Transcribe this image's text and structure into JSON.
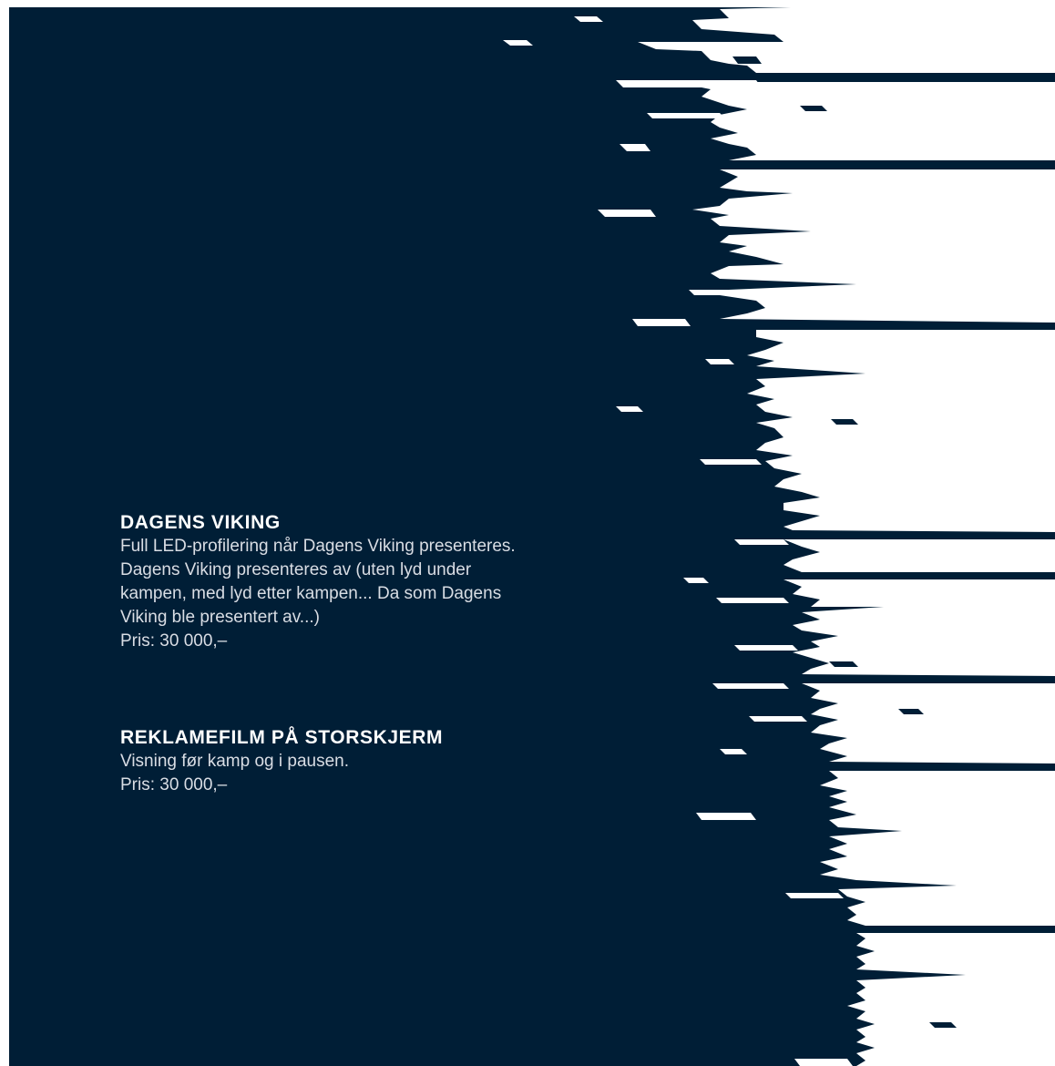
{
  "colors": {
    "background": "#001e36",
    "paper": "#ffffff",
    "heading": "#ffffff",
    "body_text": "#d9dde4"
  },
  "sections": [
    {
      "title": "DAGENS VIKING",
      "body": "Full LED-profilering når Dagens Viking presenteres. Dagens Viking presenteres av (uten lyd under kampen, med lyd etter kampen... Da som Dagens Viking ble presentert av...)",
      "price": "Pris: 30 000,–"
    },
    {
      "title": "REKLAMEFILM PÅ STORSKJERM",
      "body": "Visning før kamp og i pausen.",
      "price": "Pris: 30 000,–"
    }
  ]
}
